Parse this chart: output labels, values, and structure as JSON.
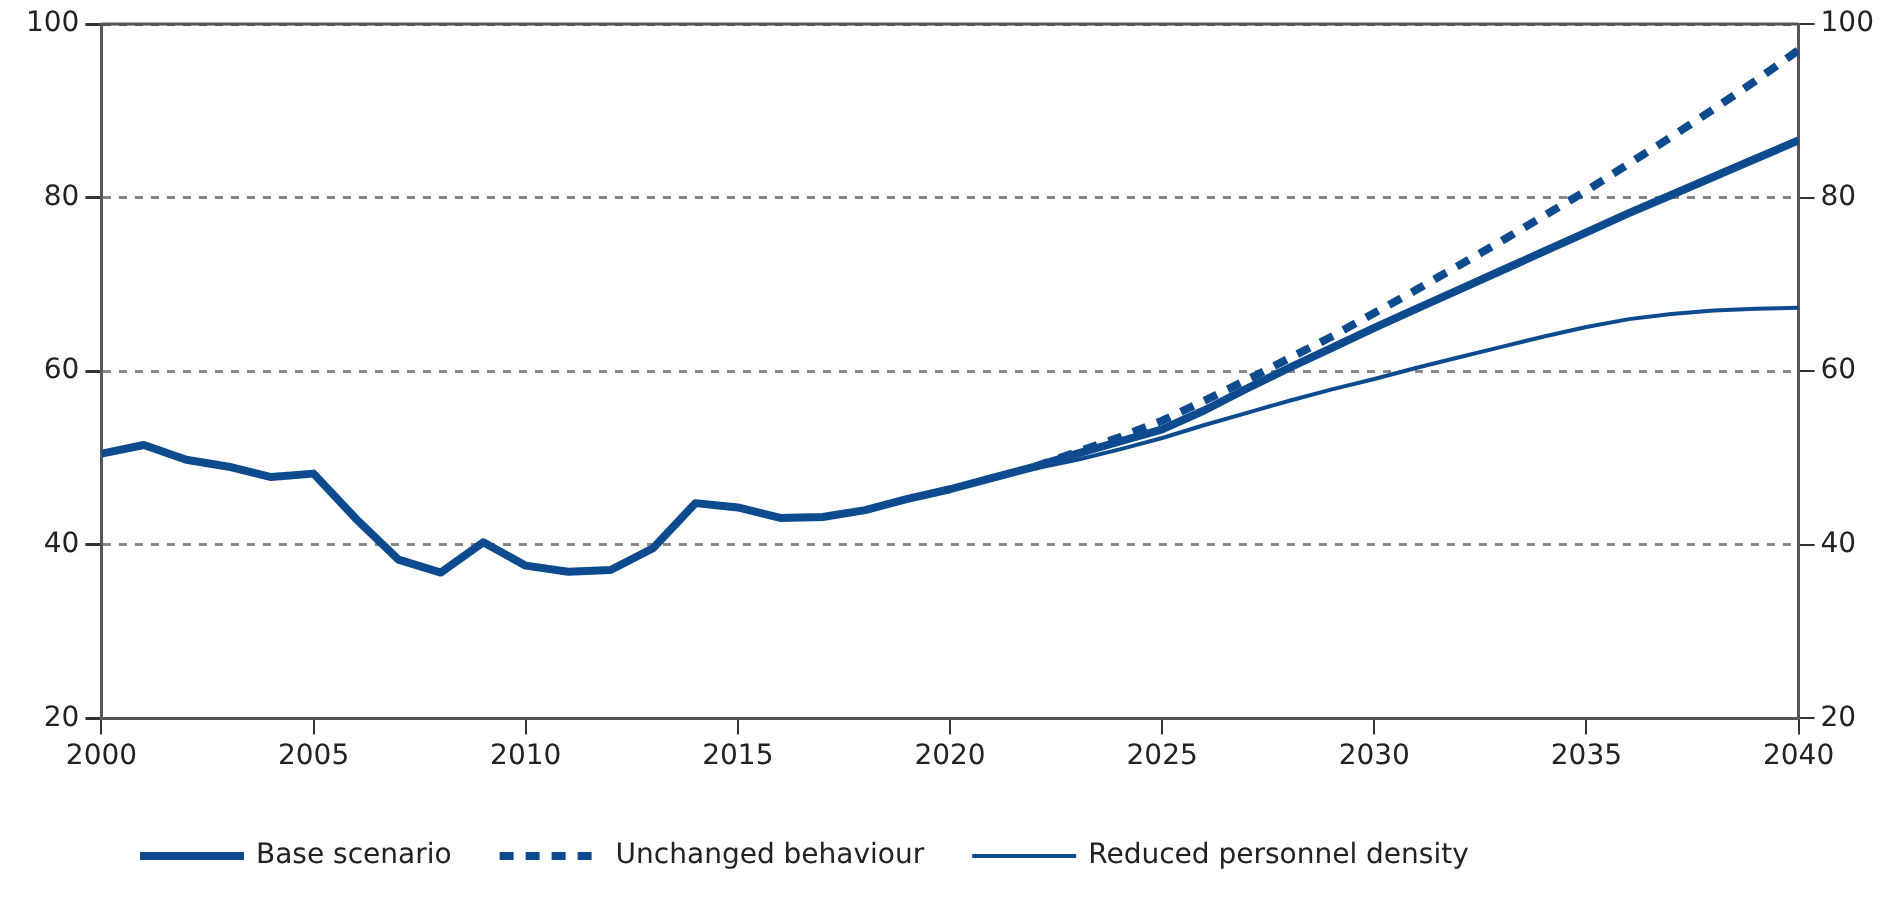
{
  "chart_data": {
    "type": "line",
    "x": [
      2000,
      2001,
      2002,
      2003,
      2004,
      2005,
      2006,
      2007,
      2008,
      2009,
      2010,
      2011,
      2012,
      2013,
      2014,
      2015,
      2016,
      2017,
      2018,
      2019,
      2020,
      2021,
      2022,
      2023,
      2024,
      2025,
      2026,
      2027,
      2028,
      2029,
      2030,
      2031,
      2032,
      2033,
      2034,
      2035,
      2036,
      2037,
      2038,
      2039,
      2040
    ],
    "series": [
      {
        "name": "Base scenario",
        "color": "#0d4a8e",
        "line_style": "solid",
        "values": [
          50.5,
          51.5,
          49.8,
          49,
          47.8,
          48.2,
          43,
          38.3,
          36.8,
          40.3,
          37.6,
          36.9,
          37.1,
          39.6,
          44.8,
          44.3,
          43.1,
          43.2,
          44,
          45.3,
          46.4,
          47.7,
          49,
          50.5,
          51.9,
          53.3,
          55.5,
          58,
          60.4,
          62.7,
          65,
          67.2,
          69.4,
          71.6,
          73.8,
          76,
          78.2,
          80.3,
          82.4,
          84.5,
          86.6
        ]
      },
      {
        "name": "Unchanged behaviour",
        "color": "#0d4a8e",
        "line_style": "dashed",
        "x": [
          2022,
          2023,
          2024,
          2025,
          2026,
          2027,
          2028,
          2029,
          2030,
          2031,
          2032,
          2033,
          2034,
          2035,
          2036,
          2037,
          2038,
          2039,
          2040
        ],
        "values": [
          49,
          50.7,
          52.4,
          54.3,
          56.6,
          59,
          61.5,
          64,
          66.7,
          69.4,
          72.2,
          75,
          77.9,
          80.8,
          83.9,
          87,
          90.2,
          93.5,
          97
        ]
      },
      {
        "name": "Reduced personnel density",
        "color": "#0d4a8e",
        "line_style": "solid",
        "x": [
          2022,
          2023,
          2024,
          2025,
          2026,
          2027,
          2028,
          2029,
          2030,
          2031,
          2032,
          2033,
          2034,
          2035,
          2036,
          2037,
          2038,
          2039,
          2040
        ],
        "values": [
          48.8,
          49.8,
          51,
          52.3,
          53.8,
          55.2,
          56.6,
          57.9,
          59.1,
          60.4,
          61.6,
          62.8,
          64,
          65.1,
          66,
          66.6,
          67,
          67.2,
          67.3
        ]
      }
    ],
    "xlim": [
      2000,
      2040
    ],
    "xticks": [
      2000,
      2005,
      2010,
      2015,
      2020,
      2025,
      2030,
      2035,
      2040
    ],
    "ylim": [
      20,
      100
    ],
    "yticks": [
      20,
      40,
      60,
      80,
      100
    ],
    "y2lim": [
      20,
      100
    ],
    "y2ticks": [
      20,
      40,
      60,
      80,
      100
    ],
    "grid": "y",
    "legend": "bottom",
    "marker": "none"
  }
}
